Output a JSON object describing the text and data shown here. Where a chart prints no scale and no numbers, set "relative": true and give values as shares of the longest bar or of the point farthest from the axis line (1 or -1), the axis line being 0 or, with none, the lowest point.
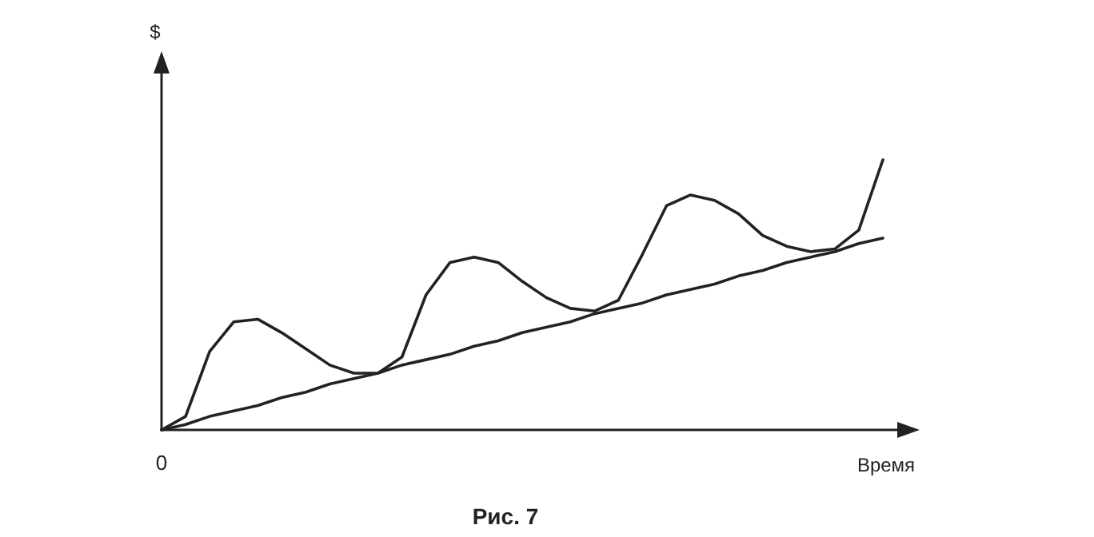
{
  "chart_data": {
    "type": "line",
    "relative": true,
    "xlabel": "Время",
    "annotations": [
      "$",
      "0",
      "Рис. 7"
    ],
    "marker": "none",
    "line_style": "solid",
    "categories": [
      null,
      null,
      null,
      null,
      null,
      null,
      null,
      null,
      null,
      null,
      null,
      null,
      null,
      null,
      null,
      null,
      null,
      null,
      null,
      null,
      null,
      null,
      null,
      null,
      null,
      null,
      null,
      null,
      null,
      null,
      null
    ],
    "series": [
      {
        "color": "#222222",
        "values": [
          0,
          0.05,
          0.29,
          0.4,
          0.41,
          0.36,
          0.3,
          0.24,
          0.21,
          0.21,
          0.27,
          0.5,
          0.62,
          0.64,
          0.62,
          0.55,
          0.49,
          0.45,
          0.44,
          0.48,
          0.65,
          0.83,
          0.87,
          0.85,
          0.8,
          0.72,
          0.68,
          0.66,
          0.67,
          0.74,
          1
        ]
      },
      {
        "color": "#222222",
        "values": [
          0,
          0.02,
          0.05,
          0.07,
          0.09,
          0.12,
          0.14,
          0.17,
          0.19,
          0.21,
          0.24,
          0.26,
          0.28,
          0.31,
          0.33,
          0.36,
          0.38,
          0.4,
          0.43,
          0.45,
          0.47,
          0.5,
          0.52,
          0.54,
          0.57,
          0.59,
          0.62,
          0.64,
          0.66,
          0.69,
          0.71
        ]
      }
    ]
  }
}
